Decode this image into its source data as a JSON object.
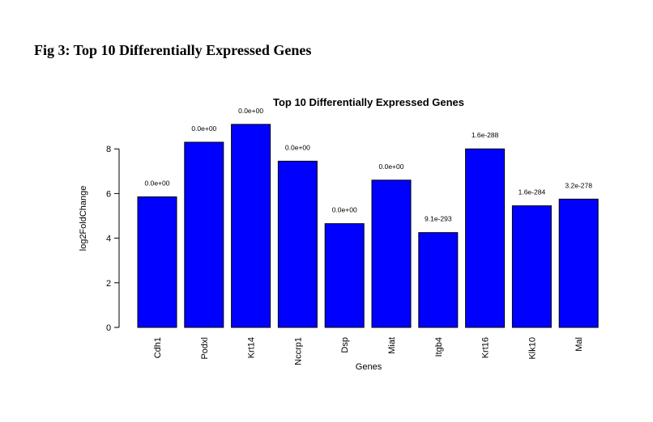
{
  "figure": {
    "caption": "Fig 3: Top 10 Differentially Expressed Genes"
  },
  "chart_data": {
    "type": "bar",
    "title": "Top 10 Differentially Expressed Genes",
    "xlabel": "Genes",
    "ylabel": "log2FoldChange",
    "categories": [
      "Cdh1",
      "Podxl",
      "Krt14",
      "Nccrp1",
      "Dsp",
      "Miat",
      "Itgb4",
      "Krt16",
      "Klk10",
      "Mal"
    ],
    "values": [
      5.85,
      8.3,
      9.1,
      7.45,
      4.65,
      6.6,
      4.25,
      8.0,
      5.45,
      5.75
    ],
    "bar_labels": [
      "0.0e+00",
      "0.0e+00",
      "0.0e+00",
      "0.0e+00",
      "0.0e+00",
      "0.0e+00",
      "9.1e-293",
      "1.6e-288",
      "1.6e-284",
      "3.2e-278"
    ],
    "y_ticks": [
      0,
      2,
      4,
      6,
      8
    ],
    "ylim": [
      0,
      9.5
    ],
    "bar_color": "#0000ff",
    "grid": false,
    "legend": "none"
  }
}
